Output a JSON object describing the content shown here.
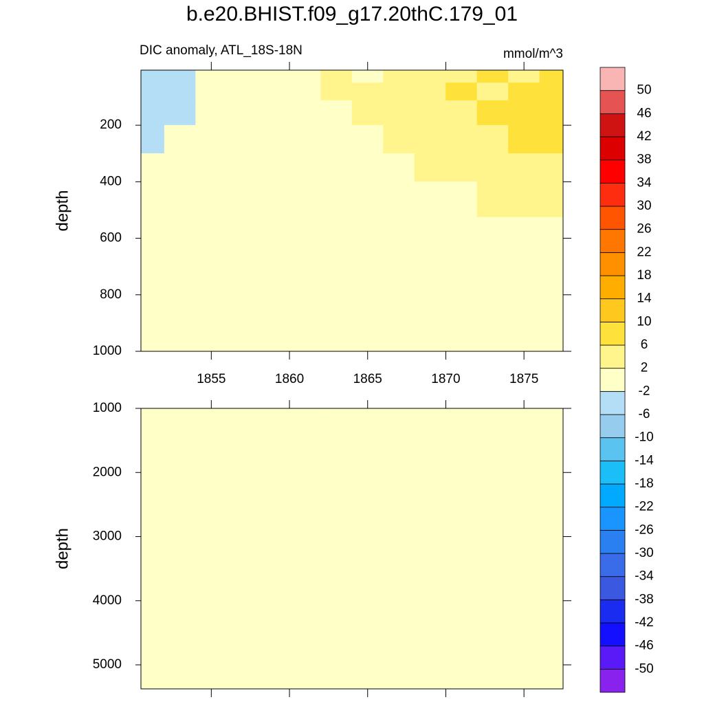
{
  "chart_data": [
    {
      "type": "contour",
      "title": "b.e20.BHIST.f09_g17.20thC.179_01",
      "subtitle_left": "DIC anomaly, ATL_18S-18N",
      "subtitle_right": "mmol/m^3",
      "y_label": "depth",
      "xlim": [
        1850.5,
        1877.5
      ],
      "xticks": [
        1855,
        1860,
        1865,
        1870,
        1875
      ],
      "show_xtick_labels": true,
      "ylim": [
        5,
        1000
      ],
      "y_reversed": true,
      "yticks": [
        200,
        400,
        600,
        800,
        1000
      ],
      "levels": [
        -50,
        -46,
        -42,
        -38,
        -34,
        -30,
        -26,
        -22,
        -18,
        -14,
        -10,
        -6,
        -2,
        2,
        6,
        10,
        14,
        18,
        22,
        26,
        30,
        34,
        38,
        42,
        46,
        50
      ],
      "colors": [
        "#8a22ee",
        "#5a1af8",
        "#1410ff",
        "#1a2cf0",
        "#3a58e0",
        "#3a6cea",
        "#2a80f0",
        "#1a94ff",
        "#02aaff",
        "#1cbef8",
        "#5ac3f0",
        "#96cdee",
        "#b3def5",
        "#ffffc8",
        "#fff58c",
        "#ffe13c",
        "#ffc81e",
        "#ffae00",
        "#ff9000",
        "#ff7700",
        "#ff5500",
        "#ff2d10",
        "#ff0000",
        "#dc0000",
        "#cf1212",
        "#e55353",
        "#f9b4b4"
      ],
      "x": [
        1851,
        1853,
        1855,
        1857,
        1859,
        1861,
        1863,
        1865,
        1867,
        1869,
        1871,
        1873,
        1875,
        1877
      ],
      "y": [
        25,
        75,
        150,
        250,
        350,
        450,
        600,
        800,
        950
      ],
      "z": [
        [
          -4,
          -3,
          0.5,
          0.5,
          0.5,
          0.5,
          2.5,
          1,
          3,
          3,
          4,
          7,
          5,
          7
        ],
        [
          -4,
          -3,
          0.5,
          0.5,
          0.5,
          0.5,
          2.5,
          3,
          3,
          3,
          7,
          5,
          8,
          8
        ],
        [
          -4,
          -3,
          0.5,
          0.5,
          0.5,
          0.5,
          0.5,
          3,
          3,
          4,
          5,
          7,
          8,
          8
        ],
        [
          -3,
          0.5,
          0.5,
          0.5,
          0.5,
          0.5,
          0.5,
          0.5,
          3,
          4,
          4,
          5,
          7,
          8
        ],
        [
          0.5,
          0.5,
          0.5,
          0.5,
          0.5,
          0.5,
          0.5,
          0.5,
          0.5,
          3,
          4,
          4,
          5,
          5
        ],
        [
          0.5,
          0.5,
          0.5,
          0.5,
          0.5,
          0.5,
          0.5,
          0.5,
          0.5,
          0.5,
          0.5,
          3,
          3,
          3
        ],
        [
          0.6,
          0.6,
          0.6,
          0.6,
          0.6,
          0.6,
          0.6,
          0.6,
          0.6,
          0.6,
          0.6,
          0.6,
          0.6,
          0.6
        ],
        [
          0.4,
          0.4,
          0.4,
          0.4,
          0.4,
          0.4,
          0.4,
          0.4,
          0.4,
          0.4,
          0.4,
          0.4,
          0.4,
          0.4
        ],
        [
          0.3,
          0.3,
          0.3,
          0.3,
          0.3,
          0.3,
          0.3,
          0.3,
          0.3,
          0.3,
          0.3,
          0.3,
          0.3,
          0.3
        ]
      ]
    },
    {
      "type": "contour",
      "y_label": "depth",
      "xlim": [
        1850.5,
        1877.5
      ],
      "xticks": [
        1855,
        1860,
        1865,
        1870,
        1875
      ],
      "show_xtick_labels": false,
      "ylim": [
        1000,
        5375
      ],
      "y_reversed": true,
      "yticks": [
        1000,
        2000,
        3000,
        4000,
        5000
      ],
      "x": [
        1851,
        1853,
        1855,
        1857,
        1859,
        1861,
        1863,
        1865,
        1867,
        1869,
        1871,
        1873,
        1875,
        1877
      ],
      "y": [
        1500,
        2500,
        3500,
        4500,
        5200
      ],
      "z": [
        [
          0.2,
          0.2,
          0.2,
          0.2,
          0.2,
          0.2,
          0.2,
          0.2,
          0.2,
          0.2,
          0.2,
          0.2,
          0.2,
          0.2
        ],
        [
          0.1,
          0.1,
          0.1,
          0.1,
          0.1,
          0.1,
          0.1,
          0.1,
          0.1,
          0.1,
          0.1,
          0.1,
          0.1,
          0.1
        ],
        [
          0.1,
          0.1,
          0.1,
          0.1,
          0.1,
          0.1,
          0.1,
          0.1,
          0.1,
          0.1,
          0.1,
          0.1,
          0.1,
          0.1
        ],
        [
          0.1,
          0.1,
          0.1,
          0.1,
          0.1,
          0.1,
          0.1,
          0.1,
          0.1,
          0.1,
          0.1,
          0.1,
          0.1,
          0.1
        ],
        [
          0.1,
          0.1,
          0.1,
          0.1,
          0.1,
          0.1,
          0.1,
          0.1,
          0.1,
          0.1,
          0.1,
          0.1,
          0.1,
          0.1
        ]
      ]
    }
  ]
}
